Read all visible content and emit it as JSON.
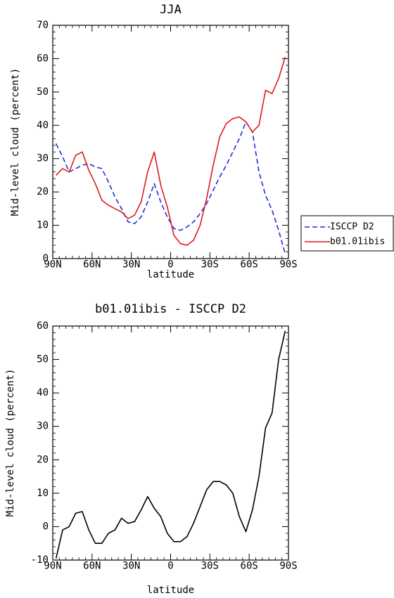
{
  "chart_data": [
    {
      "type": "line",
      "title": "JJA",
      "xlabel": "latitude",
      "ylabel": "Mid-level cloud (percent)",
      "xlim": [
        90,
        -90
      ],
      "ylim": [
        0,
        70
      ],
      "xticks": [
        90,
        60,
        30,
        0,
        -30,
        -60,
        -90
      ],
      "xtick_labels": [
        "90N",
        "60N",
        "30N",
        "0",
        "30S",
        "60S",
        "90S"
      ],
      "yticks": [
        0,
        10,
        20,
        30,
        40,
        50,
        60,
        70
      ],
      "ytick_labels": [
        "0",
        "10",
        "20",
        "30",
        "40",
        "50",
        "60",
        "70"
      ],
      "grid": false,
      "legend": "right, outside plot",
      "series": [
        {
          "name": "ISCCP D2",
          "color": "#1f2fd6",
          "dash": "dashed",
          "x": [
            87.5,
            82.5,
            77.5,
            72.5,
            67.5,
            62.5,
            57.5,
            52.5,
            47.5,
            42.5,
            37.5,
            32.5,
            27.5,
            22.5,
            17.5,
            12.5,
            7.5,
            2.5,
            -2.5,
            -7.5,
            -12.5,
            -17.5,
            -22.5,
            -27.5,
            -32.5,
            -37.5,
            -42.5,
            -47.5,
            -52.5,
            -57.5,
            -62.5,
            -67.5,
            -72.5,
            -77.5,
            -82.5,
            -87.5
          ],
          "y": [
            34.5,
            30.5,
            26,
            27,
            28,
            28.5,
            27.5,
            27,
            23,
            18.5,
            15,
            11,
            10.5,
            12.5,
            17,
            22.5,
            17,
            12.5,
            9,
            8.5,
            9.5,
            11,
            13.5,
            16.5,
            20.5,
            24.5,
            28,
            32,
            36,
            41,
            38,
            26,
            19,
            14.5,
            8.5,
            1.5
          ]
        },
        {
          "name": "b01.01ibis",
          "color": "#e01a1a",
          "dash": "solid",
          "x": [
            87.5,
            82.5,
            77.5,
            72.5,
            67.5,
            62.5,
            57.5,
            52.5,
            47.5,
            42.5,
            37.5,
            32.5,
            27.5,
            22.5,
            17.5,
            12.5,
            7.5,
            2.5,
            -2.5,
            -7.5,
            -12.5,
            -17.5,
            -22.5,
            -27.5,
            -32.5,
            -37.5,
            -42.5,
            -47.5,
            -52.5,
            -57.5,
            -62.5,
            -67.5,
            -72.5,
            -77.5,
            -82.5,
            -87.5
          ],
          "y": [
            25,
            27,
            26,
            31,
            32,
            26.5,
            22.5,
            17.5,
            16,
            15,
            14,
            12,
            13,
            17,
            26,
            32,
            22,
            15.5,
            7,
            4.5,
            4,
            5.5,
            10,
            18,
            28,
            36.5,
            40.5,
            42,
            42.5,
            41,
            38,
            40,
            50.5,
            49.5,
            54,
            60.5
          ]
        }
      ]
    },
    {
      "type": "line",
      "title": "b01.01ibis - ISCCP D2",
      "xlabel": "latitude",
      "ylabel": "Mid-level cloud (percent)",
      "xlim": [
        90,
        -90
      ],
      "ylim": [
        -10,
        60
      ],
      "xticks": [
        90,
        60,
        30,
        0,
        -30,
        -60,
        -90
      ],
      "xtick_labels": [
        "90N",
        "60N",
        "30N",
        "0",
        "30S",
        "60S",
        "90S"
      ],
      "yticks": [
        -10,
        0,
        10,
        20,
        30,
        40,
        50,
        60
      ],
      "ytick_labels": [
        "-10",
        "0",
        "10",
        "20",
        "30",
        "40",
        "50",
        "60"
      ],
      "grid": false,
      "series": [
        {
          "color": "#000000",
          "dash": "solid",
          "x": [
            87.5,
            82.5,
            77.5,
            72.5,
            67.5,
            62.5,
            57.5,
            52.5,
            47.5,
            42.5,
            37.5,
            32.5,
            27.5,
            22.5,
            17.5,
            12.5,
            7.5,
            2.5,
            -2.5,
            -7.5,
            -12.5,
            -17.5,
            -22.5,
            -27.5,
            -32.5,
            -37.5,
            -42.5,
            -47.5,
            -52.5,
            -57.5,
            -62.5,
            -67.5,
            -72.5,
            -77.5,
            -82.5,
            -87.5
          ],
          "y": [
            -9.5,
            -1,
            0,
            4,
            4.5,
            -1,
            -5,
            -5,
            -2,
            -1,
            2.5,
            1,
            1.5,
            5,
            9,
            5.5,
            3,
            -2,
            -4.5,
            -4.5,
            -3,
            1,
            6,
            11,
            13.5,
            13.5,
            12.5,
            10,
            3,
            -1.5,
            5,
            15,
            29.5,
            34,
            50,
            58.5
          ]
        }
      ]
    }
  ]
}
